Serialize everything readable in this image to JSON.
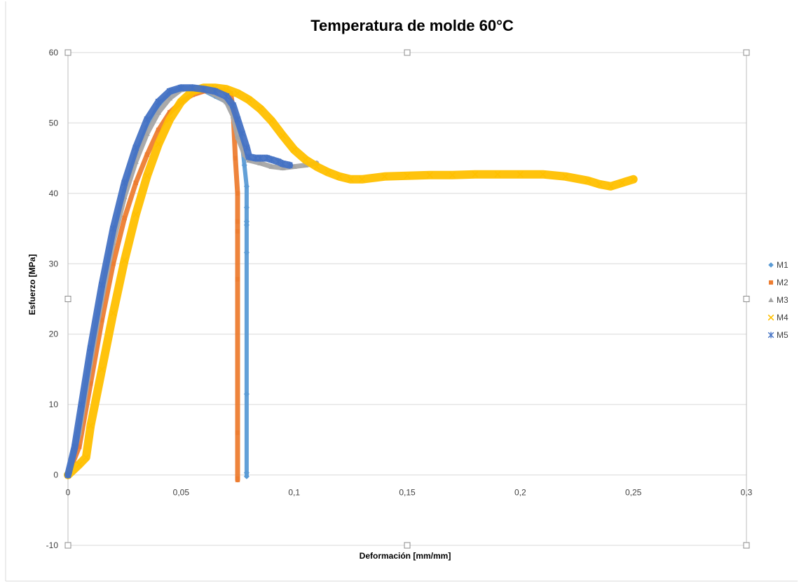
{
  "chart_data": {
    "type": "scatter",
    "title": "Temperatura de molde 60°C",
    "xlabel": "Deformación  [mm/mm]",
    "ylabel": "Esfuerzo  [MPa]",
    "xlim": [
      0,
      0.3
    ],
    "ylim": [
      -10,
      60
    ],
    "x_ticks": [
      "0",
      "0,05",
      "0,1",
      "0,15",
      "0,2",
      "0,25",
      "0,3"
    ],
    "y_ticks": [
      "-10",
      "0",
      "10",
      "20",
      "30",
      "40",
      "50",
      "60"
    ],
    "x_tick_values": [
      0,
      0.05,
      0.1,
      0.15,
      0.2,
      0.25,
      0.3
    ],
    "y_tick_values": [
      -10,
      0,
      10,
      20,
      30,
      40,
      50,
      60
    ],
    "grid": "horizontal",
    "legend_position": "right",
    "series": [
      {
        "name": "M1",
        "color": "#5b9bd5",
        "marker": "diamond",
        "x": [
          0,
          0.005,
          0.01,
          0.015,
          0.02,
          0.025,
          0.03,
          0.035,
          0.04,
          0.045,
          0.05,
          0.055,
          0.06,
          0.065,
          0.07,
          0.073,
          0.075,
          0.077,
          0.078,
          0.079,
          0.079,
          0.079,
          0.079,
          0.079,
          0.079,
          0.079,
          0.079
        ],
        "y": [
          0,
          7,
          17,
          26,
          34,
          40.5,
          45.5,
          49.5,
          52.5,
          54.3,
          55.0,
          55.0,
          54.6,
          53.8,
          53.0,
          52.0,
          50.0,
          47.0,
          44.0,
          41.0,
          38.0,
          36.0,
          35.5,
          31.6,
          11.5,
          0.3,
          -0.2
        ]
      },
      {
        "name": "M2",
        "color": "#ed7d31",
        "marker": "square",
        "x": [
          0,
          0.005,
          0.01,
          0.015,
          0.02,
          0.025,
          0.03,
          0.035,
          0.04,
          0.045,
          0.05,
          0.055,
          0.06,
          0.065,
          0.07,
          0.072,
          0.073,
          0.074,
          0.075,
          0.075,
          0.075,
          0.075,
          0.075,
          0.075,
          0.075
        ],
        "y": [
          0,
          4,
          13,
          22,
          30,
          36.5,
          41.5,
          45.5,
          49.0,
          51.5,
          53.0,
          54.0,
          54.5,
          54.7,
          54.6,
          54.2,
          52.0,
          45.0,
          40.0,
          36.0,
          34.6,
          27.8,
          6.0,
          -0.5,
          -0.7
        ]
      },
      {
        "name": "M3",
        "color": "#a5a5a5",
        "marker": "triangle",
        "x": [
          0,
          0.005,
          0.01,
          0.015,
          0.02,
          0.025,
          0.03,
          0.035,
          0.04,
          0.045,
          0.05,
          0.055,
          0.06,
          0.065,
          0.07,
          0.073,
          0.075,
          0.078,
          0.08,
          0.085,
          0.09,
          0.095,
          0.1,
          0.105,
          0.11
        ],
        "y": [
          0,
          6,
          16,
          25,
          33,
          39.5,
          44.5,
          48.5,
          51.5,
          53.5,
          54.7,
          55.0,
          54.8,
          54.0,
          53.0,
          51.0,
          48.0,
          45.5,
          44.7,
          44.3,
          43.8,
          43.6,
          43.8,
          44.0,
          44.3
        ]
      },
      {
        "name": "M4",
        "color": "#ffc000",
        "marker": "x",
        "x": [
          0,
          0.005,
          0.008,
          0.01,
          0.015,
          0.02,
          0.025,
          0.03,
          0.035,
          0.04,
          0.045,
          0.05,
          0.055,
          0.06,
          0.065,
          0.07,
          0.075,
          0.08,
          0.085,
          0.09,
          0.095,
          0.1,
          0.105,
          0.11,
          0.115,
          0.12,
          0.125,
          0.13,
          0.14,
          0.15,
          0.16,
          0.17,
          0.18,
          0.19,
          0.2,
          0.21,
          0.22,
          0.23,
          0.235,
          0.24,
          0.245,
          0.25
        ],
        "y": [
          0,
          1.5,
          2.5,
          7,
          15,
          23,
          30.5,
          37,
          42.5,
          47,
          50.5,
          53,
          54.5,
          55.0,
          55.0,
          54.8,
          54.2,
          53.3,
          52.0,
          50.3,
          48.2,
          46.2,
          44.8,
          43.8,
          43.0,
          42.4,
          42.0,
          42.0,
          42.4,
          42.5,
          42.6,
          42.6,
          42.7,
          42.7,
          42.7,
          42.7,
          42.4,
          41.8,
          41.3,
          41.0,
          41.5,
          42.0
        ]
      },
      {
        "name": "M5",
        "color": "#4472c4",
        "marker": "star",
        "x": [
          0,
          0.003,
          0.006,
          0.01,
          0.015,
          0.02,
          0.025,
          0.03,
          0.035,
          0.04,
          0.045,
          0.05,
          0.055,
          0.06,
          0.065,
          0.07,
          0.073,
          0.075,
          0.077,
          0.079,
          0.08,
          0.083,
          0.085,
          0.088,
          0.09,
          0.093,
          0.095,
          0.098
        ],
        "y": [
          0,
          4,
          10,
          18,
          27,
          35,
          41.5,
          46.5,
          50.5,
          53.0,
          54.5,
          55.0,
          55.0,
          54.8,
          54.5,
          53.8,
          52.5,
          50.5,
          48.5,
          46.5,
          45.2,
          45.0,
          45.0,
          45.0,
          44.8,
          44.5,
          44.2,
          44.0
        ]
      }
    ]
  }
}
